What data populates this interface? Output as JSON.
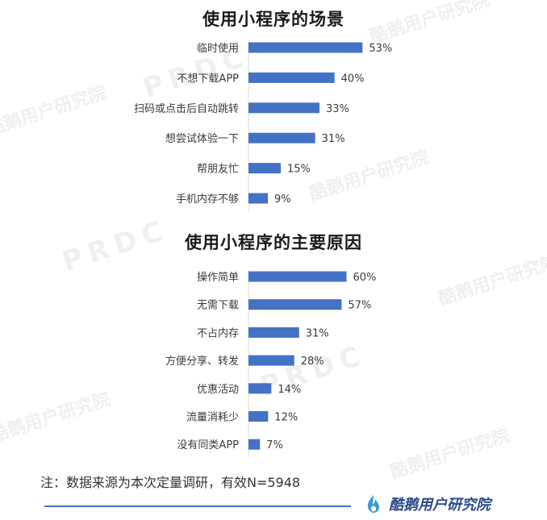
{
  "chart_data": [
    {
      "type": "bar",
      "orientation": "horizontal",
      "title": "使用小程序的场景",
      "categories": [
        "临时使用",
        "不想下载APP",
        "扫码或点击后自动跳转",
        "想尝试体验一下",
        "帮朋友忙",
        "手机内存不够"
      ],
      "values": [
        53,
        40,
        33,
        31,
        15,
        9
      ],
      "value_labels": [
        "53%",
        "40%",
        "33%",
        "31%",
        "15%",
        "9%"
      ],
      "unit": "%",
      "xlim": [
        0,
        60
      ],
      "grid": false,
      "legend": "none",
      "color": "#4472c4"
    },
    {
      "type": "bar",
      "orientation": "horizontal",
      "title": "使用小程序的主要原因",
      "categories": [
        "操作简单",
        "无需下载",
        "不占内存",
        "方便分享、转发",
        "优惠活动",
        "流量消耗少",
        "没有同类APP"
      ],
      "values": [
        60,
        57,
        31,
        28,
        14,
        12,
        7
      ],
      "value_labels": [
        "60%",
        "57%",
        "31%",
        "28%",
        "14%",
        "12%",
        "7%"
      ],
      "unit": "%",
      "xlim": [
        0,
        60
      ],
      "grid": false,
      "legend": "none",
      "color": "#4472c4"
    }
  ],
  "note": "注：数据来源为本次定量调研，有效N=5948",
  "footer": {
    "brand": "酷鹅用户研究院",
    "logo_icon": "penguin-flame-icon",
    "line_color": "#4472c4"
  },
  "watermarks": {
    "brand": "酷鹅用户研究院",
    "prdc": "PRDC"
  }
}
